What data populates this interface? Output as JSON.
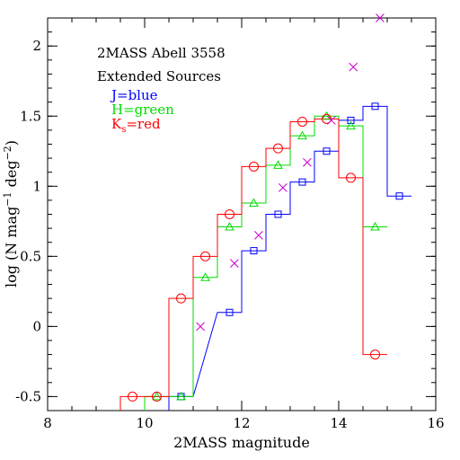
{
  "chart_data": {
    "type": "line",
    "title": "",
    "xlabel": "2MASS magnitude",
    "ylabel": "log (N mag⁻¹ deg⁻²)",
    "ylabel_parts": {
      "prefix": "log (N mag",
      "sup1": "−1",
      "mid": " deg",
      "sup2": "−2",
      "suffix": ")"
    },
    "xlim": [
      8,
      16
    ],
    "ylim": [
      -0.6,
      2.2
    ],
    "x_ticks": [
      8,
      10,
      12,
      14,
      16
    ],
    "x_ticks_minor_step": 0.5,
    "y_ticks": [
      -0.5,
      0,
      0.5,
      1,
      1.5,
      2
    ],
    "y_ticks_minor_step": 0.1,
    "y_tick_labels": [
      "-0.5",
      "0",
      "0.5",
      "1",
      "1.5",
      "2"
    ],
    "annotations": {
      "line1": "2MASS Abell 3558",
      "line2": "Extended Sources",
      "legend_J": "J=blue",
      "legend_H": "H=green",
      "legend_K_prefix": "K",
      "legend_K_sub": "s",
      "legend_K_suffix": "=red"
    },
    "bin_width": 0.5,
    "colors": {
      "J": "#0000ff",
      "H": "#00dd00",
      "K": "#ff0000",
      "extra": "#cc00cc"
    },
    "series": [
      {
        "key": "J",
        "marker": "square",
        "x": [
          10.75,
          11.75,
          12.25,
          12.75,
          13.25,
          13.75,
          14.25,
          14.75,
          15.25
        ],
        "y": [
          -0.5,
          0.1,
          0.54,
          0.8,
          1.03,
          1.25,
          1.47,
          1.57,
          0.93
        ]
      },
      {
        "key": "H",
        "marker": "triangle",
        "x": [
          10.25,
          10.75,
          11.25,
          11.75,
          12.25,
          12.75,
          13.25,
          13.75,
          14.25,
          14.75
        ],
        "y": [
          -0.5,
          -0.5,
          0.35,
          0.71,
          0.88,
          1.15,
          1.36,
          1.5,
          1.43,
          0.71
        ]
      },
      {
        "key": "K",
        "marker": "circle",
        "x": [
          9.75,
          10.25,
          10.75,
          11.25,
          11.75,
          12.25,
          12.75,
          13.25,
          13.75,
          14.25,
          14.75
        ],
        "y": [
          -0.5,
          -0.5,
          0.2,
          0.5,
          0.8,
          1.14,
          1.27,
          1.46,
          1.48,
          1.06,
          -0.2
        ]
      },
      {
        "key": "extra",
        "marker": "cross",
        "x": [
          11.15,
          11.85,
          12.35,
          12.85,
          13.35,
          13.85,
          14.3,
          14.85
        ],
        "y": [
          0.0,
          0.45,
          0.65,
          0.99,
          1.17,
          1.47,
          1.85,
          2.2
        ]
      }
    ]
  }
}
